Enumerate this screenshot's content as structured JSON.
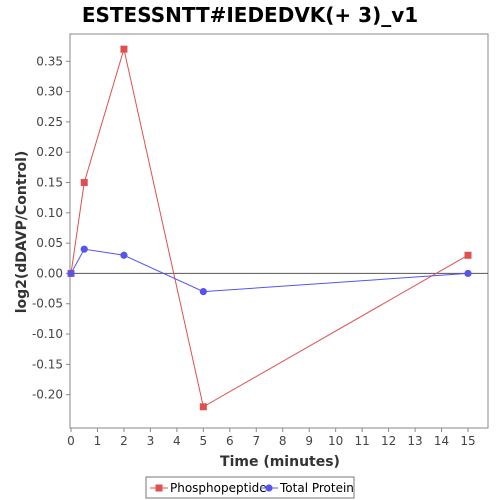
{
  "chart_data": {
    "type": "line",
    "title": "ESTESSNTT#IEDEDVK(+ 3)_v1",
    "xlabel": "Time (minutes)",
    "ylabel": "log2(dDAVP/Control)",
    "xlim": [
      0,
      15.7
    ],
    "ylim": [
      -0.255,
      0.395
    ],
    "xticks": [
      0,
      1,
      2,
      3,
      4,
      5,
      6,
      7,
      8,
      9,
      10,
      11,
      12,
      13,
      14,
      15
    ],
    "yticks": [
      -0.2,
      -0.15,
      -0.1,
      -0.05,
      0.0,
      0.05,
      0.1,
      0.15,
      0.2,
      0.25,
      0.3,
      0.35
    ],
    "ytick_labels": [
      "-0.20",
      "-0.15",
      "-0.10",
      "-0.05",
      "0.00",
      "0.05",
      "0.10",
      "0.15",
      "0.20",
      "0.25",
      "0.30",
      "0.35"
    ],
    "grid": false,
    "legend_position": "bottom",
    "series": [
      {
        "name": "Phosphopeptide",
        "color": "#e05050",
        "marker": "square",
        "x": [
          0,
          0.5,
          2,
          5,
          15
        ],
        "y": [
          0.0,
          0.15,
          0.37,
          -0.22,
          0.03
        ]
      },
      {
        "name": "Total Protein",
        "color": "#5555ee",
        "marker": "circle",
        "x": [
          0,
          0.5,
          2,
          5,
          15
        ],
        "y": [
          0.0,
          0.04,
          0.03,
          -0.03,
          0.0
        ]
      }
    ]
  }
}
